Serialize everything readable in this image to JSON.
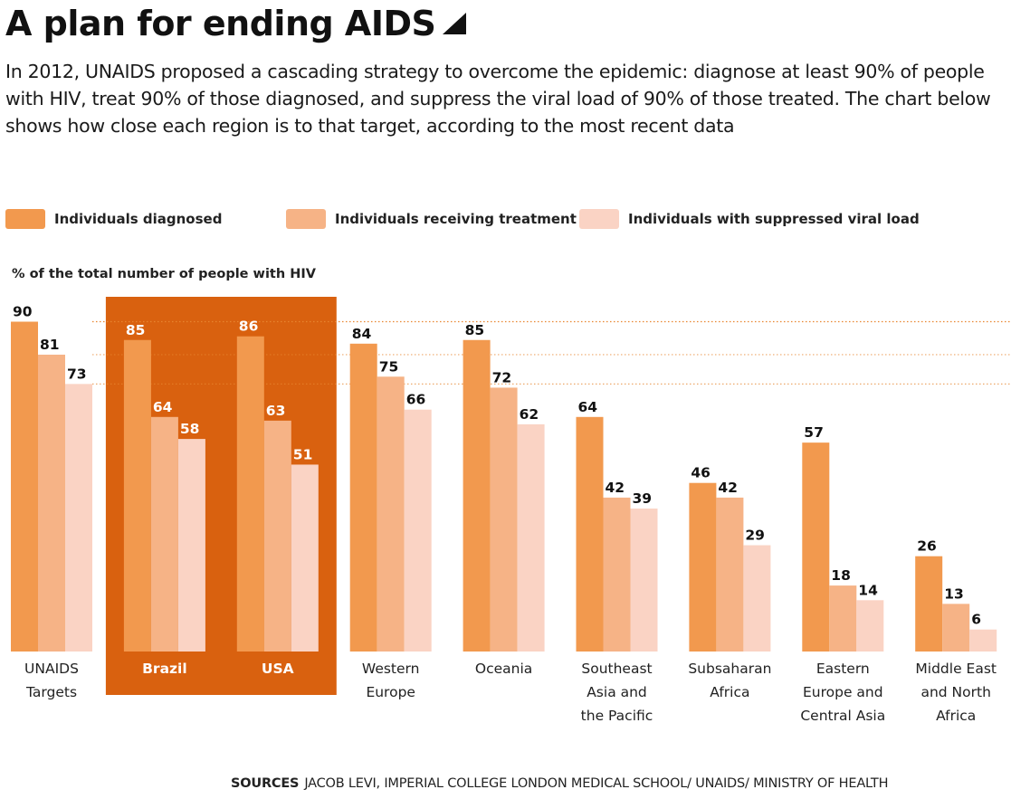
{
  "header": {
    "title": "A plan for ending AIDS",
    "subtitle": "In 2012, UNAIDS proposed a cascading strategy to overcome the epidemic: diagnose at least 90% of people with HIV, treat 90% of those diagnosed, and suppress the viral load of 90% of those treated. The chart below shows how close each region is to that target, according to the most recent data"
  },
  "legend": {
    "items": [
      "Individuals diagnosed",
      "Individuals receiving treatment",
      "Individuals with suppressed viral load"
    ]
  },
  "footer": {
    "sources_label": "SOURCES",
    "sources_text": "JACOB LEVI, IMPERIAL COLLEGE LONDON MEDICAL SCHOOL/ UNAIDS/ MINISTRY OF HEALTH"
  },
  "colors": {
    "diagnosed": "#f2994e",
    "treatment": "#f6b386",
    "suppressed": "#fad3c4",
    "highlight_bg": "#d9610f",
    "reference_line": "#e8852f"
  },
  "chart_data": {
    "type": "bar",
    "ylabel": "% of the total number of people with HIV",
    "ylim": [
      0,
      100
    ],
    "categories": [
      [
        "UNAIDS",
        "Targets"
      ],
      [
        "Brazil"
      ],
      [
        "USA"
      ],
      [
        "Western",
        "Europe"
      ],
      [
        "Oceania"
      ],
      [
        "Southeast",
        "Asia and",
        "the Pacific"
      ],
      [
        "Subsaharan",
        "Africa"
      ],
      [
        "Eastern",
        "Europe and",
        "Central Asia"
      ],
      [
        "Middle East",
        "and North",
        "Africa"
      ]
    ],
    "highlighted_categories": [
      1,
      2
    ],
    "reference_lines": [
      90,
      81,
      73
    ],
    "series": [
      {
        "name": "Individuals diagnosed",
        "values": [
          90,
          85,
          86,
          84,
          85,
          64,
          46,
          57,
          26
        ]
      },
      {
        "name": "Individuals receiving treatment",
        "values": [
          81,
          64,
          63,
          75,
          72,
          42,
          42,
          18,
          13
        ]
      },
      {
        "name": "Individuals with suppressed viral load",
        "values": [
          73,
          58,
          51,
          66,
          62,
          39,
          29,
          14,
          6
        ]
      }
    ]
  }
}
